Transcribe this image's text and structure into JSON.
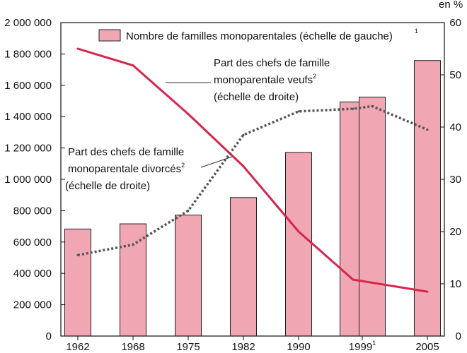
{
  "chart_data": {
    "type": "bar",
    "categories": [
      "1962",
      "1968",
      "1975",
      "1982",
      "1990",
      "1999",
      "1999",
      "2005"
    ],
    "category_superscripts": [
      "",
      "",
      "",
      "",
      "",
      "1",
      "",
      ""
    ],
    "series": [
      {
        "name": "Nombre de familles monoparentales (échelle de gauche)",
        "superscript": "1",
        "type": "bar",
        "axis": "left",
        "color": "#f0a7b3",
        "values": [
          683000,
          716000,
          772000,
          884000,
          1172000,
          1494000,
          1525000,
          1758000
        ]
      },
      {
        "type": "line",
        "axis": "right",
        "color": "#d6264a",
        "label_lines": [
          "Part des chefs de famille",
          "monoparentale veufs",
          "(échelle de droite)"
        ],
        "label_superscript": "2",
        "values": [
          55,
          51.8,
          42.5,
          32.5,
          20,
          10.8,
          null,
          8.5
        ]
      },
      {
        "type": "line",
        "axis": "right",
        "color": "#555555",
        "dashed": true,
        "label_lines": [
          "Part des chefs de famille",
          "monoparentale divorcés",
          "(échelle de droite)"
        ],
        "label_superscript": "2",
        "values": [
          15.5,
          17.5,
          24,
          38.5,
          43,
          43.5,
          44,
          39.5
        ]
      }
    ],
    "y_left": {
      "ylim": [
        0,
        2000000
      ],
      "ticks": [
        "0",
        "200 000",
        "400 000",
        "600 000",
        "800 000",
        "1 000 000",
        "1 200 000",
        "1 400 000",
        "1 600 000",
        "1 800 000",
        "2 000 000"
      ]
    },
    "y_right": {
      "unit_label": "en %",
      "ylim": [
        0,
        60
      ],
      "ticks": [
        "0",
        "10",
        "20",
        "30",
        "40",
        "50",
        "60"
      ]
    },
    "grid": false,
    "legend": "top"
  }
}
